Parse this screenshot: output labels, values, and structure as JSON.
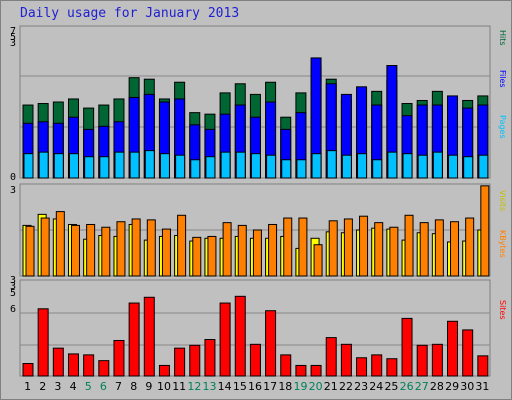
{
  "title": "Daily usage for January 2013",
  "colors": {
    "background": "#c0c0c0",
    "pages": "#006633",
    "files": "#0000ff",
    "hits_stack_light": "#00c0ff",
    "kbytes": "#ff8000",
    "visits": "#ffff00",
    "sites": "#ff0000",
    "weekend_label": "#00805a",
    "weekday_label": "#000000"
  },
  "chart_data": [
    {
      "type": "bar",
      "categories": [
        "1",
        "2",
        "3",
        "4",
        "5",
        "6",
        "7",
        "8",
        "9",
        "10",
        "11",
        "12",
        "13",
        "14",
        "15",
        "16",
        "17",
        "18",
        "19",
        "20",
        "21",
        "22",
        "23",
        "24",
        "25",
        "26",
        "27",
        "28",
        "29",
        "30",
        "31"
      ],
      "weekend_days": [
        "5",
        "6",
        "12",
        "13",
        "19",
        "20",
        "26",
        "27"
      ],
      "y_ticks": [
        "7",
        "5",
        "3",
        "0"
      ],
      "series": [
        {
          "name": "Hits",
          "color": "#006633",
          "values": [
            48,
            49,
            50,
            52,
            46,
            48,
            52,
            66,
            65,
            52,
            63,
            43,
            42,
            56,
            62,
            55,
            63,
            40,
            56,
            73,
            65,
            51,
            59,
            57,
            64,
            49,
            51,
            57,
            52,
            51,
            54
          ]
        },
        {
          "name": "Files",
          "color": "#0000ff",
          "values": [
            36,
            37,
            36,
            40,
            32,
            34,
            37,
            53,
            55,
            50,
            52,
            35,
            32,
            42,
            48,
            40,
            50,
            32,
            43,
            79,
            62,
            55,
            60,
            48,
            74,
            41,
            48,
            48,
            54,
            46,
            48
          ]
        },
        {
          "name": "Pages",
          "color": "#00c0ff",
          "values": [
            16,
            17,
            16,
            16,
            14,
            14,
            17,
            17,
            18,
            16,
            15,
            12,
            14,
            17,
            17,
            16,
            15,
            12,
            12,
            16,
            18,
            15,
            16,
            12,
            17,
            16,
            15,
            17,
            15,
            14,
            15
          ]
        }
      ]
    },
    {
      "type": "bar",
      "categories": [
        "1",
        "2",
        "3",
        "4",
        "5",
        "6",
        "7",
        "8",
        "9",
        "10",
        "11",
        "12",
        "13",
        "14",
        "15",
        "16",
        "17",
        "18",
        "19",
        "20",
        "21",
        "22",
        "23",
        "24",
        "25",
        "26",
        "27",
        "28",
        "29",
        "30",
        "31"
      ],
      "y_ticks": [
        "3"
      ],
      "series": [
        {
          "name": "Visits",
          "color": "#ffff00",
          "values": [
            55,
            67,
            62,
            56,
            40,
            44,
            43,
            56,
            39,
            43,
            44,
            38,
            41,
            41,
            43,
            41,
            41,
            43,
            30,
            41,
            48,
            47,
            50,
            52,
            51,
            39,
            47,
            46,
            37,
            38,
            50
          ]
        },
        {
          "name": "KBytes",
          "color": "#ff8000",
          "values": [
            54,
            63,
            70,
            55,
            56,
            53,
            59,
            62,
            61,
            51,
            66,
            42,
            43,
            58,
            55,
            50,
            56,
            63,
            63,
            34,
            60,
            62,
            65,
            58,
            53,
            66,
            58,
            61,
            59,
            63,
            98
          ]
        }
      ]
    },
    {
      "type": "bar",
      "categories": [
        "1",
        "2",
        "3",
        "4",
        "5",
        "6",
        "7",
        "8",
        "9",
        "10",
        "11",
        "12",
        "13",
        "14",
        "15",
        "16",
        "17",
        "18",
        "19",
        "20",
        "21",
        "22",
        "23",
        "24",
        "25",
        "26",
        "27",
        "28",
        "29",
        "30",
        "31"
      ],
      "y_ticks": [
        "3",
        "3",
        "5",
        "6"
      ],
      "series": [
        {
          "name": "Sites",
          "color": "#ff0000",
          "values": [
            13,
            70,
            29,
            23,
            22,
            16,
            37,
            76,
            82,
            11,
            29,
            32,
            38,
            76,
            83,
            33,
            68,
            22,
            11,
            11,
            40,
            33,
            19,
            22,
            18,
            60,
            32,
            33,
            57,
            48,
            21
          ]
        }
      ]
    }
  ],
  "legend_right": [
    "Hits",
    "Files",
    "Pages",
    "Visits",
    "KBytes",
    "Sites"
  ]
}
